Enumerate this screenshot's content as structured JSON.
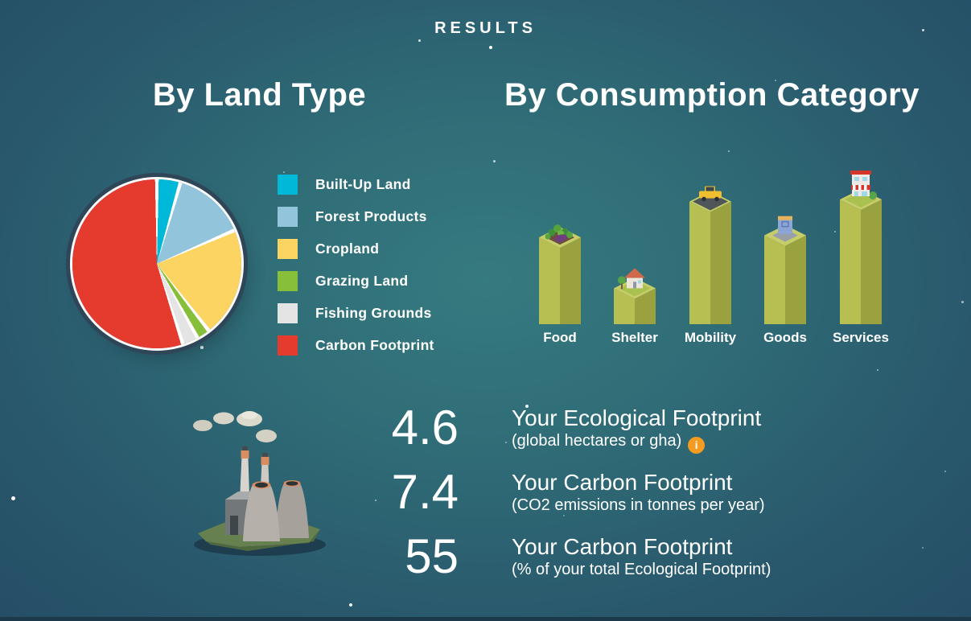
{
  "header": {
    "title": "RESULTS"
  },
  "sections": {
    "land_type": {
      "heading": "By Land Type"
    },
    "consumption": {
      "heading": "By Consumption Category"
    }
  },
  "chart_data": [
    {
      "type": "pie",
      "title": "By Land Type",
      "unit": "% of Ecological Footprint",
      "start_angle_deg": 0,
      "legend_position": "right",
      "slices": [
        {
          "label": "Built-Up Land",
          "value": 4.5,
          "color": "#00b9d8"
        },
        {
          "label": "Forest Products",
          "value": 14,
          "color": "#92c4dc"
        },
        {
          "label": "Cropland",
          "value": 21,
          "color": "#fcd462"
        },
        {
          "label": "Grazing Land",
          "value": 2.5,
          "color": "#88bf3a"
        },
        {
          "label": "Fishing Grounds",
          "value": 3,
          "color": "#e4e4e4"
        },
        {
          "label": "Carbon Footprint",
          "value": 55,
          "color": "#e53a2e"
        }
      ]
    },
    {
      "type": "bar",
      "title": "By Consumption Category",
      "style": "isometric-3d",
      "categories": [
        "Food",
        "Shelter",
        "Mobility",
        "Goods",
        "Services"
      ],
      "values": [
        0.87,
        0.36,
        1.23,
        0.89,
        1.25
      ],
      "unit": "gha (estimated, bars unlabeled)",
      "bar_color_left": "#b7bf53",
      "bar_color_right": "#99a23f",
      "bar_color_top": "#c7cd68",
      "icons": [
        "vegetables",
        "house",
        "car",
        "shopping-bag",
        "storefront"
      ]
    }
  ],
  "stats": [
    {
      "value": "4.6",
      "title": "Your Ecological Footprint",
      "subtitle": "(global hectares or gha)",
      "info_icon": true
    },
    {
      "value": "7.4",
      "title": "Your Carbon Footprint",
      "subtitle": "(CO2 emissions in tonnes per year)",
      "info_icon": false
    },
    {
      "value": "55",
      "title": "Your Carbon Footprint",
      "subtitle": "(% of your total Ecological Footprint)",
      "info_icon": false
    }
  ],
  "info_icon": {
    "glyph": "i",
    "color": "#f59c20"
  },
  "colors": {
    "background_center": "#367b80",
    "background_edge": "#254e66",
    "text": "#ffffff",
    "pie_ring": "#2f4659",
    "accent_orange": "#f59c20"
  }
}
